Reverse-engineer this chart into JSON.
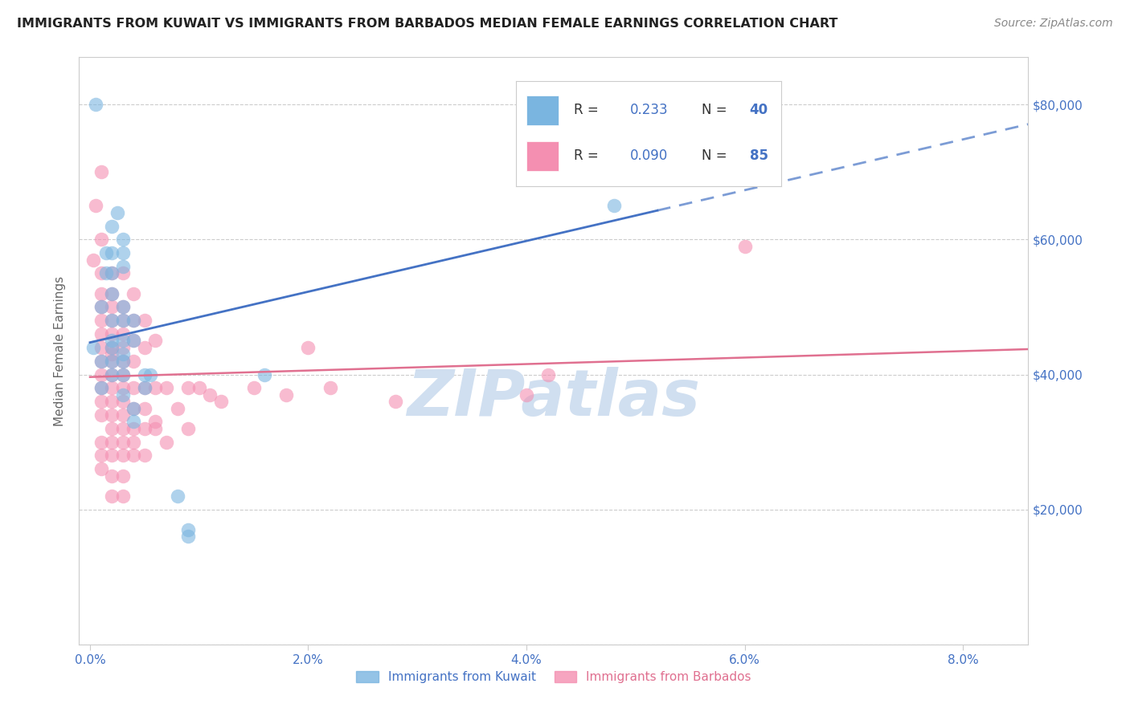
{
  "title": "IMMIGRANTS FROM KUWAIT VS IMMIGRANTS FROM BARBADOS MEDIAN FEMALE EARNINGS CORRELATION CHART",
  "source": "Source: ZipAtlas.com",
  "xlabel_ticks": [
    "0.0%",
    "2.0%",
    "4.0%",
    "6.0%",
    "8.0%"
  ],
  "xlabel_tick_vals": [
    0.0,
    0.02,
    0.04,
    0.06,
    0.08
  ],
  "ylabel": "Median Female Earnings",
  "ylabel_ticks": [
    0,
    20000,
    40000,
    60000,
    80000
  ],
  "ylabel_tick_labels": [
    "",
    "$20,000",
    "$40,000",
    "$60,000",
    "$80,000"
  ],
  "xlim": [
    -0.001,
    0.086
  ],
  "ylim": [
    0,
    87000
  ],
  "kuwait_color": "#7ab5e0",
  "barbados_color": "#f48fb1",
  "kuwait_line_color": "#4472c4",
  "barbados_line_color": "#e07090",
  "background_color": "#ffffff",
  "grid_color": "#cccccc",
  "tick_label_color": "#4472c4",
  "watermark": "ZIPatlas",
  "watermark_color": "#d0dff0",
  "kuwait_scatter": [
    [
      0.0003,
      44000
    ],
    [
      0.0005,
      80000
    ],
    [
      0.001,
      42000
    ],
    [
      0.001,
      38000
    ],
    [
      0.001,
      50000
    ],
    [
      0.0015,
      58000
    ],
    [
      0.0015,
      55000
    ],
    [
      0.002,
      62000
    ],
    [
      0.002,
      58000
    ],
    [
      0.002,
      55000
    ],
    [
      0.002,
      52000
    ],
    [
      0.002,
      48000
    ],
    [
      0.002,
      45000
    ],
    [
      0.002,
      44000
    ],
    [
      0.002,
      42000
    ],
    [
      0.002,
      40000
    ],
    [
      0.0025,
      64000
    ],
    [
      0.003,
      60000
    ],
    [
      0.003,
      58000
    ],
    [
      0.003,
      56000
    ],
    [
      0.003,
      50000
    ],
    [
      0.003,
      48000
    ],
    [
      0.003,
      45000
    ],
    [
      0.003,
      43000
    ],
    [
      0.003,
      42000
    ],
    [
      0.003,
      40000
    ],
    [
      0.003,
      37000
    ],
    [
      0.004,
      48000
    ],
    [
      0.004,
      45000
    ],
    [
      0.004,
      35000
    ],
    [
      0.004,
      33000
    ],
    [
      0.005,
      40000
    ],
    [
      0.005,
      38000
    ],
    [
      0.0055,
      40000
    ],
    [
      0.008,
      22000
    ],
    [
      0.009,
      17000
    ],
    [
      0.009,
      16000
    ],
    [
      0.016,
      40000
    ],
    [
      0.048,
      65000
    ],
    [
      0.048,
      80000
    ]
  ],
  "barbados_scatter": [
    [
      0.0003,
      57000
    ],
    [
      0.0005,
      65000
    ],
    [
      0.001,
      70000
    ],
    [
      0.001,
      60000
    ],
    [
      0.001,
      55000
    ],
    [
      0.001,
      52000
    ],
    [
      0.001,
      50000
    ],
    [
      0.001,
      48000
    ],
    [
      0.001,
      46000
    ],
    [
      0.001,
      44000
    ],
    [
      0.001,
      42000
    ],
    [
      0.001,
      40000
    ],
    [
      0.001,
      38000
    ],
    [
      0.001,
      36000
    ],
    [
      0.001,
      34000
    ],
    [
      0.001,
      30000
    ],
    [
      0.001,
      28000
    ],
    [
      0.001,
      26000
    ],
    [
      0.002,
      55000
    ],
    [
      0.002,
      52000
    ],
    [
      0.002,
      50000
    ],
    [
      0.002,
      48000
    ],
    [
      0.002,
      46000
    ],
    [
      0.002,
      44000
    ],
    [
      0.002,
      43000
    ],
    [
      0.002,
      42000
    ],
    [
      0.002,
      40000
    ],
    [
      0.002,
      38000
    ],
    [
      0.002,
      36000
    ],
    [
      0.002,
      34000
    ],
    [
      0.002,
      32000
    ],
    [
      0.002,
      30000
    ],
    [
      0.002,
      28000
    ],
    [
      0.002,
      25000
    ],
    [
      0.002,
      22000
    ],
    [
      0.003,
      55000
    ],
    [
      0.003,
      50000
    ],
    [
      0.003,
      48000
    ],
    [
      0.003,
      46000
    ],
    [
      0.003,
      44000
    ],
    [
      0.003,
      42000
    ],
    [
      0.003,
      40000
    ],
    [
      0.003,
      38000
    ],
    [
      0.003,
      36000
    ],
    [
      0.003,
      34000
    ],
    [
      0.003,
      32000
    ],
    [
      0.003,
      30000
    ],
    [
      0.003,
      28000
    ],
    [
      0.003,
      25000
    ],
    [
      0.003,
      22000
    ],
    [
      0.004,
      52000
    ],
    [
      0.004,
      48000
    ],
    [
      0.004,
      45000
    ],
    [
      0.004,
      42000
    ],
    [
      0.004,
      38000
    ],
    [
      0.004,
      35000
    ],
    [
      0.004,
      32000
    ],
    [
      0.004,
      30000
    ],
    [
      0.004,
      28000
    ],
    [
      0.005,
      48000
    ],
    [
      0.005,
      44000
    ],
    [
      0.005,
      38000
    ],
    [
      0.005,
      35000
    ],
    [
      0.005,
      32000
    ],
    [
      0.005,
      28000
    ],
    [
      0.006,
      45000
    ],
    [
      0.006,
      38000
    ],
    [
      0.006,
      33000
    ],
    [
      0.006,
      32000
    ],
    [
      0.007,
      38000
    ],
    [
      0.007,
      30000
    ],
    [
      0.008,
      35000
    ],
    [
      0.009,
      38000
    ],
    [
      0.009,
      32000
    ],
    [
      0.01,
      38000
    ],
    [
      0.011,
      37000
    ],
    [
      0.012,
      36000
    ],
    [
      0.015,
      38000
    ],
    [
      0.018,
      37000
    ],
    [
      0.02,
      44000
    ],
    [
      0.022,
      38000
    ],
    [
      0.028,
      36000
    ],
    [
      0.04,
      37000
    ],
    [
      0.042,
      40000
    ],
    [
      0.06,
      59000
    ]
  ]
}
